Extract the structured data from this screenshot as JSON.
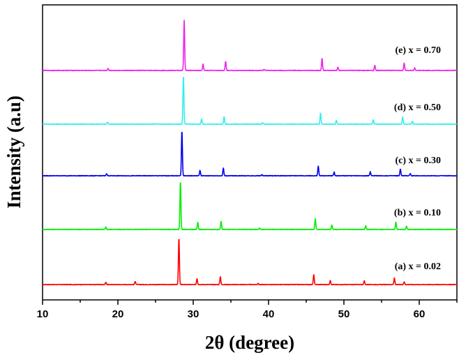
{
  "chart_data": {
    "type": "line",
    "title": "",
    "xlabel": "2θ (degree)",
    "ylabel": "Intensity (a.u)",
    "xlim": [
      10,
      65
    ],
    "xticks": [
      10,
      20,
      30,
      40,
      50,
      60
    ],
    "ylim": [
      0,
      1
    ],
    "grid": false,
    "legend": "none (labels placed next to each trace)",
    "series": [
      {
        "name": "(a) x = 0.02",
        "color": "#ff0000",
        "peaks": [
          [
            18.4,
            0.05
          ],
          [
            22.3,
            0.07
          ],
          [
            28.1,
            1.0
          ],
          [
            30.5,
            0.13
          ],
          [
            33.6,
            0.17
          ],
          [
            38.6,
            0.025
          ],
          [
            46.0,
            0.21
          ],
          [
            48.2,
            0.09
          ],
          [
            52.7,
            0.08
          ],
          [
            56.7,
            0.14
          ],
          [
            58.0,
            0.06
          ]
        ]
      },
      {
        "name": "(b) x = 0.10",
        "color": "#00ee00",
        "peaks": [
          [
            18.4,
            0.05
          ],
          [
            28.3,
            1.0
          ],
          [
            30.6,
            0.15
          ],
          [
            33.7,
            0.17
          ],
          [
            38.8,
            0.03
          ],
          [
            46.2,
            0.22
          ],
          [
            48.4,
            0.09
          ],
          [
            52.9,
            0.08
          ],
          [
            56.9,
            0.15
          ],
          [
            58.3,
            0.07
          ]
        ]
      },
      {
        "name": "(c) x = 0.30",
        "color": "#0000ee",
        "peaks": [
          [
            18.5,
            0.05
          ],
          [
            28.5,
            1.0
          ],
          [
            30.9,
            0.12
          ],
          [
            34.0,
            0.17
          ],
          [
            39.1,
            0.025
          ],
          [
            46.6,
            0.21
          ],
          [
            48.7,
            0.08
          ],
          [
            53.5,
            0.09
          ],
          [
            57.5,
            0.15
          ],
          [
            58.8,
            0.05
          ]
        ]
      },
      {
        "name": "(d) x = 0.50",
        "color": "#33eeee",
        "peaks": [
          [
            18.6,
            0.04
          ],
          [
            28.7,
            1.0
          ],
          [
            31.1,
            0.11
          ],
          [
            34.1,
            0.16
          ],
          [
            39.2,
            0.025
          ],
          [
            46.9,
            0.23
          ],
          [
            49.0,
            0.08
          ],
          [
            53.9,
            0.09
          ],
          [
            57.8,
            0.15
          ],
          [
            59.1,
            0.06
          ]
        ]
      },
      {
        "name": "(e) x = 0.70",
        "color": "#ee22ee",
        "peaks": [
          [
            18.7,
            0.04
          ],
          [
            28.8,
            1.0
          ],
          [
            31.3,
            0.13
          ],
          [
            34.3,
            0.18
          ],
          [
            39.4,
            0.025
          ],
          [
            47.1,
            0.24
          ],
          [
            49.2,
            0.07
          ],
          [
            54.1,
            0.1
          ],
          [
            58.0,
            0.15
          ],
          [
            59.4,
            0.05
          ]
        ]
      }
    ]
  }
}
